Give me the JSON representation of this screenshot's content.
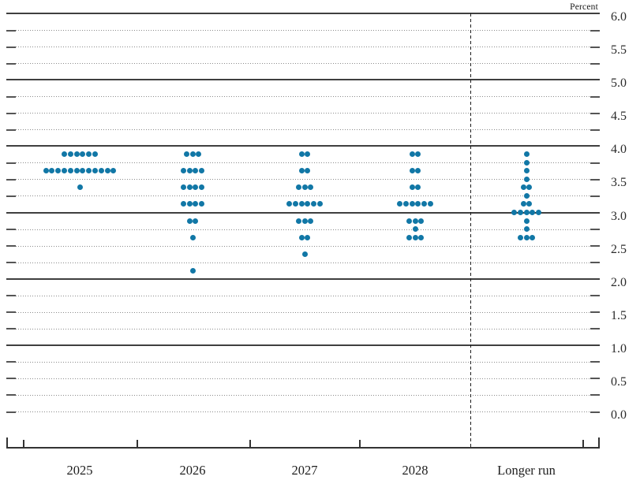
{
  "chart": {
    "y_axis_title": "Percent"
  },
  "chart_data": {
    "type": "scatter",
    "subtype": "fomc-dot-plot",
    "title": "",
    "ylabel": "Percent",
    "ylim": [
      0.0,
      6.0
    ],
    "ytick_step": 0.5,
    "grid_step": 0.25,
    "grid_solid_at_integers": true,
    "legend": "none",
    "categories": [
      "2025",
      "2026",
      "2027",
      "2028",
      "Longer run"
    ],
    "separator_before_category": "Longer run",
    "dot_color": "#1177a6",
    "ytick_labels": [
      "6.0",
      "5.5",
      "5.0",
      "4.5",
      "4.0",
      "3.5",
      "3.0",
      "2.5",
      "2.0",
      "1.5",
      "1.0",
      "0.5",
      "0.0"
    ],
    "series": [
      {
        "category": "2025",
        "dots": [
          {
            "rate": 3.875,
            "count": 6
          },
          {
            "rate": 3.625,
            "count": 12
          },
          {
            "rate": 3.375,
            "count": 1
          }
        ]
      },
      {
        "category": "2026",
        "dots": [
          {
            "rate": 3.875,
            "count": 3
          },
          {
            "rate": 3.625,
            "count": 4
          },
          {
            "rate": 3.375,
            "count": 4
          },
          {
            "rate": 3.125,
            "count": 4
          },
          {
            "rate": 2.875,
            "count": 2
          },
          {
            "rate": 2.625,
            "count": 1
          },
          {
            "rate": 2.125,
            "count": 1
          }
        ]
      },
      {
        "category": "2027",
        "dots": [
          {
            "rate": 3.875,
            "count": 2
          },
          {
            "rate": 3.625,
            "count": 2
          },
          {
            "rate": 3.375,
            "count": 3
          },
          {
            "rate": 3.125,
            "count": 6
          },
          {
            "rate": 2.875,
            "count": 3
          },
          {
            "rate": 2.625,
            "count": 2
          },
          {
            "rate": 2.375,
            "count": 1
          }
        ]
      },
      {
        "category": "2028",
        "dots": [
          {
            "rate": 3.875,
            "count": 2
          },
          {
            "rate": 3.625,
            "count": 2
          },
          {
            "rate": 3.375,
            "count": 2
          },
          {
            "rate": 3.125,
            "count": 6
          },
          {
            "rate": 2.875,
            "count": 3
          },
          {
            "rate": 2.75,
            "count": 1
          },
          {
            "rate": 2.625,
            "count": 3
          }
        ]
      },
      {
        "category": "Longer run",
        "dots": [
          {
            "rate": 3.875,
            "count": 1
          },
          {
            "rate": 3.75,
            "count": 1
          },
          {
            "rate": 3.625,
            "count": 1
          },
          {
            "rate": 3.5,
            "count": 1
          },
          {
            "rate": 3.375,
            "count": 2
          },
          {
            "rate": 3.25,
            "count": 1
          },
          {
            "rate": 3.125,
            "count": 2
          },
          {
            "rate": 3.0,
            "count": 5
          },
          {
            "rate": 2.875,
            "count": 1
          },
          {
            "rate": 2.75,
            "count": 1
          },
          {
            "rate": 2.625,
            "count": 3
          }
        ]
      }
    ]
  }
}
